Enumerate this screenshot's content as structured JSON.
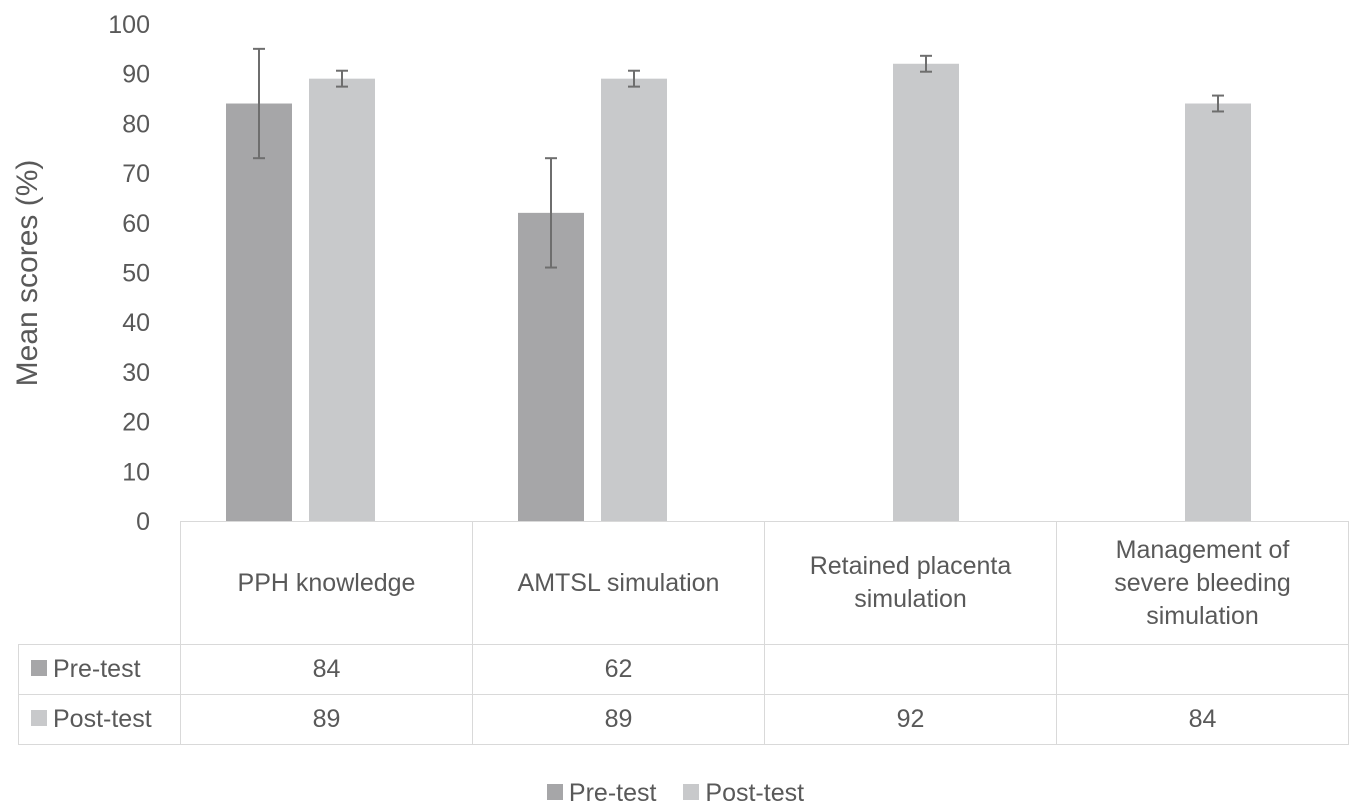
{
  "chart_data": {
    "type": "bar",
    "ylabel": "Mean scores (%)",
    "ylim": [
      0,
      100
    ],
    "y_ticks": [
      "0",
      "10",
      "20",
      "30",
      "40",
      "50",
      "60",
      "70",
      "80",
      "90",
      "100"
    ],
    "categories": [
      "PPH knowledge",
      "AMTSL simulation",
      "Retained placenta simulation",
      "Management of severe bleeding simulation"
    ],
    "category_lines": [
      [
        "PPH knowledge"
      ],
      [
        "AMTSL simulation"
      ],
      [
        "Retained placenta",
        "simulation"
      ],
      [
        "Management of",
        "severe bleeding",
        "simulation"
      ]
    ],
    "series": [
      {
        "name": "Pre-test",
        "color": "#a6a6a8",
        "values": [
          84,
          62,
          null,
          null
        ],
        "error": [
          11,
          11,
          null,
          null
        ]
      },
      {
        "name": "Post-test",
        "color": "#c8c9cb",
        "values": [
          89,
          89,
          92,
          84
        ],
        "error": [
          1.6,
          1.6,
          1.6,
          1.6
        ]
      }
    ],
    "table_values": [
      [
        "84",
        "62",
        "",
        ""
      ],
      [
        "89",
        "89",
        "92",
        "84"
      ]
    ],
    "legend_position": "bottom",
    "grid": false
  }
}
